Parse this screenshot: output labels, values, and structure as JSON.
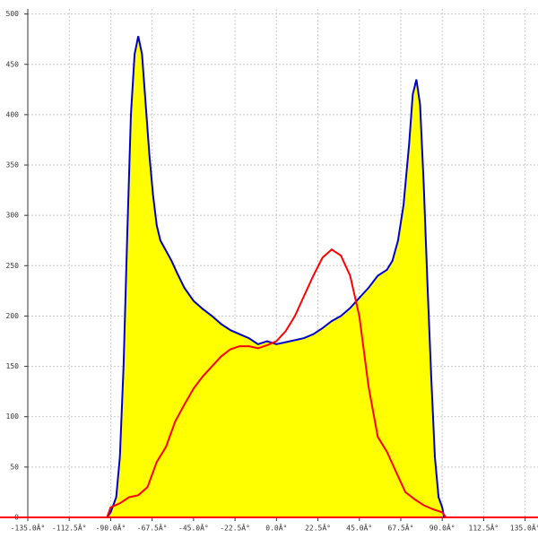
{
  "chart_data": {
    "type": "line",
    "xlim": [
      -135,
      142
    ],
    "ylim": [
      0,
      505
    ],
    "xticks": [
      {
        "value": -135,
        "label": "-135.0Â°"
      },
      {
        "value": -112.5,
        "label": "-112.5Â°"
      },
      {
        "value": -90,
        "label": "-90.0Â°"
      },
      {
        "value": -67.5,
        "label": "-67.5Â°"
      },
      {
        "value": -45,
        "label": "-45.0Â°"
      },
      {
        "value": -22.5,
        "label": "-22.5Â°"
      },
      {
        "value": 0,
        "label": "0.0Â°"
      },
      {
        "value": 22.5,
        "label": "22.5Â°"
      },
      {
        "value": 45,
        "label": "45.0Â°"
      },
      {
        "value": 67.5,
        "label": "67.5Â°"
      },
      {
        "value": 90,
        "label": "90.0Â°"
      },
      {
        "value": 112.5,
        "label": "112.5Â°"
      },
      {
        "value": 135,
        "label": "135.0Â°"
      }
    ],
    "yticks": [
      0,
      50,
      100,
      150,
      200,
      250,
      300,
      350,
      400,
      450,
      500
    ],
    "grid": true,
    "axis_color": "#ff0000",
    "series": [
      {
        "color": "#0000cc",
        "fill": "#ffff00",
        "x": [
          -92,
          -90,
          -87,
          -85,
          -83,
          -81,
          -79,
          -77,
          -75,
          -73,
          -71,
          -69,
          -67,
          -65,
          -63,
          -60,
          -57,
          -54,
          -50,
          -45,
          -40,
          -35,
          -30,
          -25,
          -20,
          -15,
          -10,
          -5,
          0,
          5,
          10,
          15,
          20,
          25,
          30,
          35,
          40,
          45,
          50,
          55,
          60,
          63,
          66,
          69,
          72,
          74,
          76,
          78,
          80,
          82,
          84,
          86,
          88,
          90,
          91
        ],
        "values": [
          0,
          5,
          20,
          60,
          150,
          280,
          400,
          460,
          478,
          460,
          410,
          360,
          320,
          290,
          275,
          265,
          255,
          243,
          228,
          215,
          207,
          200,
          192,
          186,
          182,
          178,
          172,
          175,
          172,
          174,
          176,
          178,
          182,
          188,
          195,
          200,
          208,
          218,
          228,
          240,
          246,
          255,
          275,
          310,
          370,
          420,
          435,
          410,
          330,
          230,
          140,
          60,
          20,
          10,
          0
        ]
      },
      {
        "color": "#ff0000",
        "x": [
          -92,
          -90,
          -85,
          -80,
          -75,
          -70,
          -65,
          -60,
          -55,
          -50,
          -45,
          -40,
          -35,
          -30,
          -25,
          -20,
          -15,
          -10,
          -5,
          0,
          5,
          10,
          15,
          20,
          25,
          30,
          35,
          40,
          45,
          50,
          55,
          60,
          65,
          70,
          75,
          80,
          85,
          90,
          92
        ],
        "values": [
          0,
          10,
          14,
          20,
          22,
          30,
          55,
          70,
          95,
          112,
          128,
          140,
          150,
          160,
          167,
          170,
          170,
          168,
          171,
          175,
          185,
          200,
          220,
          240,
          258,
          266,
          260,
          240,
          200,
          130,
          80,
          65,
          45,
          25,
          18,
          12,
          8,
          5,
          0
        ]
      }
    ]
  }
}
